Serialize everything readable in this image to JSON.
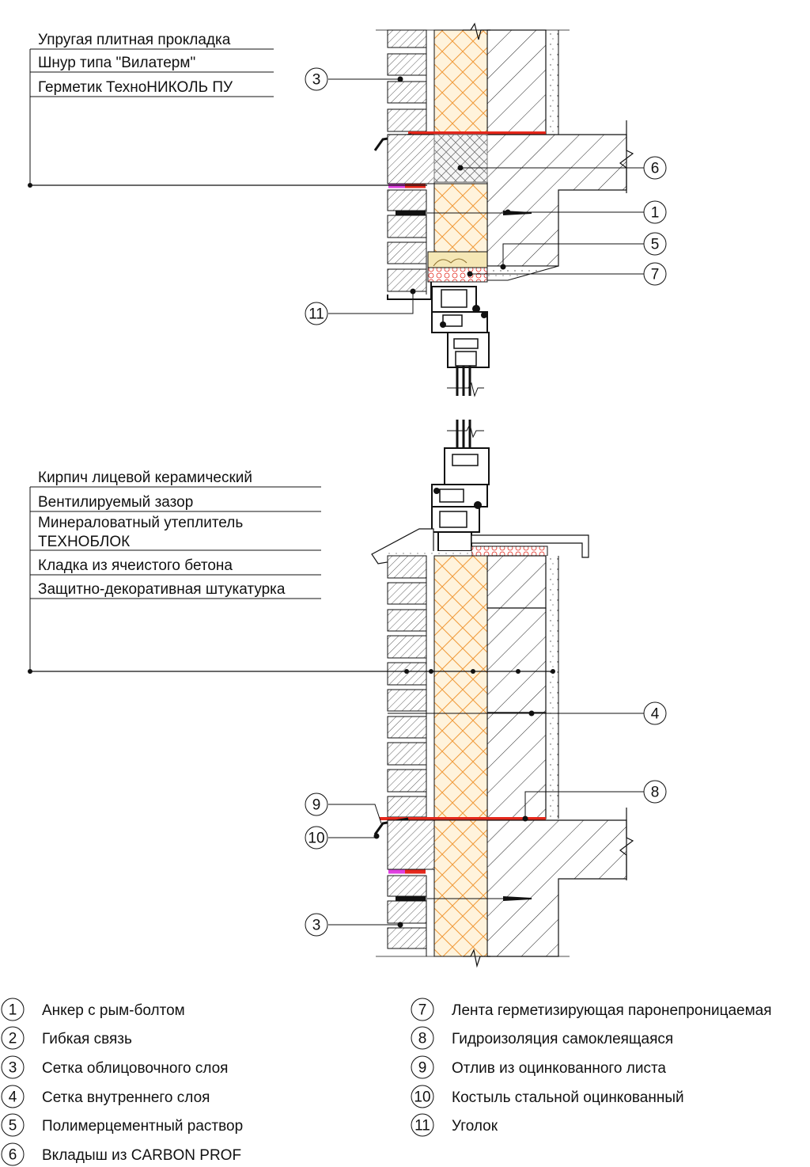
{
  "top_labels": [
    "Упругая плитная прокладка",
    "Шнур типа \"Вилатерм\"",
    "Герметик ТехноНИКОЛЬ ПУ"
  ],
  "bottom_labels": [
    "Кирпич лицевой керамический",
    "Вентилируемый зазор",
    "Минераловатный утеплитель",
    "ТЕХНОБЛОК",
    "Кладка из ячеистого бетона",
    "Защитно-декоративная штукатурка"
  ],
  "callouts": {
    "top_3": "3",
    "top_6": "6",
    "top_1": "1",
    "top_5": "5",
    "top_7": "7",
    "top_11": "11",
    "bot_4": "4",
    "bot_8": "8",
    "bot_9": "9",
    "bot_10": "10",
    "bot_3": "3"
  },
  "legend": [
    {
      "num": "1",
      "text": "Анкер с рым-болтом"
    },
    {
      "num": "2",
      "text": "Гибкая связь"
    },
    {
      "num": "3",
      "text": "Сетка облицовочного слоя"
    },
    {
      "num": "4",
      "text": "Сетка внутреннего слоя"
    },
    {
      "num": "5",
      "text": "Полимерцементный раствор"
    },
    {
      "num": "6",
      "text": "Вкладыш из CARBON PROF"
    },
    {
      "num": "7",
      "text": "Лента герметизирующая паронепроницаемая"
    },
    {
      "num": "8",
      "text": "Гидроизоляция самоклеящаяся"
    },
    {
      "num": "9",
      "text": "Отлив из оцинкованного листа"
    },
    {
      "num": "10",
      "text": "Костыль стальной оцинкованный"
    },
    {
      "num": "11",
      "text": "Уголок"
    }
  ],
  "colors": {
    "insulation_fill": "#fff3dc",
    "insulation_line": "#f09a3a",
    "waterproofing": "#e5281c",
    "sealant": "#e040e0",
    "tape_dots": "#e5281c",
    "mortar": "#f5e7b5"
  }
}
